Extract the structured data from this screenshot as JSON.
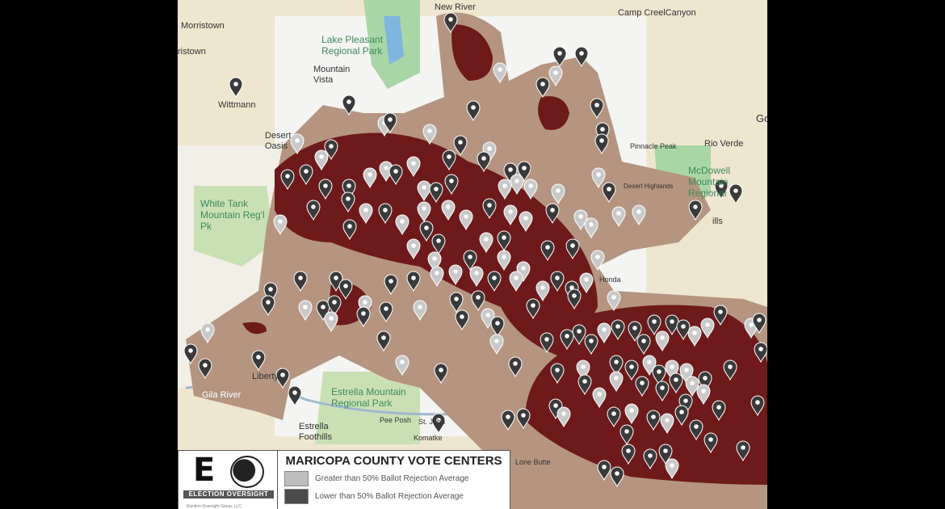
{
  "map": {
    "place_labels": {
      "morristown": "Morristown",
      "wickenburg_partial": "ristown",
      "new_river": "New River",
      "camp_creek": "Camp CreelCanyon",
      "lake_pleasant": "Lake Pleasant Regional Park",
      "mountain_vista": "Mountain Vista",
      "wittmann": "Wittmann",
      "desert_oasis": "Desert Oasis",
      "pinnacle_peak": "Pinnacle Peak",
      "rio_verde": "Rio Verde",
      "desert_highlands": "Desert Highlands",
      "mcdowell": "McDowell Mountain Regional",
      "white_tank": "White Tank Mountain Reg'l Pk",
      "liberty": "Liberty",
      "gila_river": "Gila River",
      "estrella": "Estrella Mountain Regional Park",
      "estrella_foothills": "Estrella Foothills",
      "pee_posh": "Pee Posh",
      "st_johns": "St. John",
      "komatke": "Komatke",
      "lone_butte": "Lone Butte",
      "honda": "Honda",
      "hills": "ills",
      "edge_g": "Go"
    },
    "colors": {
      "base": "#efe6cf",
      "urban": "#f4f4f2",
      "park": "#a9d6a6",
      "tan_zone": "#b59580",
      "dark_zone": "#6e1a1a",
      "pin_light": "#c9c9c9",
      "pin_dark": "#3a3a3a"
    }
  },
  "legend": {
    "title": "MARICOPA COUNTY VOTE CENTERS",
    "items": [
      {
        "label": "Greater than 50% Ballot Rejection Average",
        "color": "#bdbdbd"
      },
      {
        "label": "Lower than 50% Ballot Rejection Average",
        "color": "#4a4a4a"
      }
    ],
    "logo_text": "ELECTION OVERSIGHT",
    "logo_subtext": "Election Oversight Group, LLC"
  }
}
